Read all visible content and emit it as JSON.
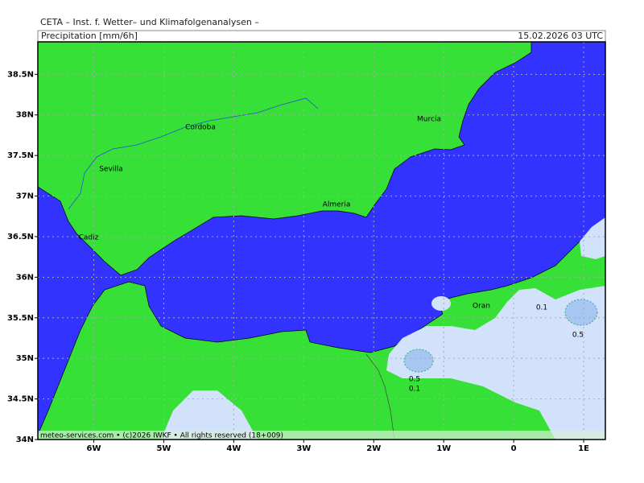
{
  "header": {
    "title": "CETA – Inst. f. Wetter– und Klimafolgenanalysen –",
    "subtitle": "Precipitation [mm/6h]",
    "timestamp": "15.02.2026 03 UTC"
  },
  "map": {
    "xlim": [
      -6.8,
      1.31
    ],
    "ylim": [
      34,
      38.9
    ],
    "xticks": [
      {
        "value": -6,
        "label": "6W"
      },
      {
        "value": -5,
        "label": "5W"
      },
      {
        "value": -4,
        "label": "4W"
      },
      {
        "value": -3,
        "label": "3W"
      },
      {
        "value": -2,
        "label": "2W"
      },
      {
        "value": -1,
        "label": "1W"
      },
      0,
      {
        "value": 1,
        "label": "1E"
      }
    ],
    "yticks": [
      {
        "value": 34,
        "label": "34N"
      },
      {
        "value": 34.5,
        "label": "34.5N"
      },
      {
        "value": 35,
        "label": "35N"
      },
      {
        "value": 35.5,
        "label": "35.5N"
      },
      {
        "value": 36,
        "label": "36N"
      },
      {
        "value": 36.5,
        "label": "36.5N"
      },
      {
        "value": 37,
        "label": "37N"
      },
      {
        "value": 37.5,
        "label": "37.5N"
      },
      {
        "value": 38,
        "label": "38N"
      },
      {
        "value": 38.5,
        "label": "38.5N"
      }
    ],
    "cities": [
      "Cordoba",
      "Sevilla",
      "Murcia",
      "Almeria",
      "Cadiz",
      "Oran"
    ],
    "contour_labels": [
      "0.1",
      "0.5",
      "0.5",
      "0.1"
    ],
    "footer": "meteo-services.com • (c)2026 IWKF • All rights reserved (18+009)"
  }
}
